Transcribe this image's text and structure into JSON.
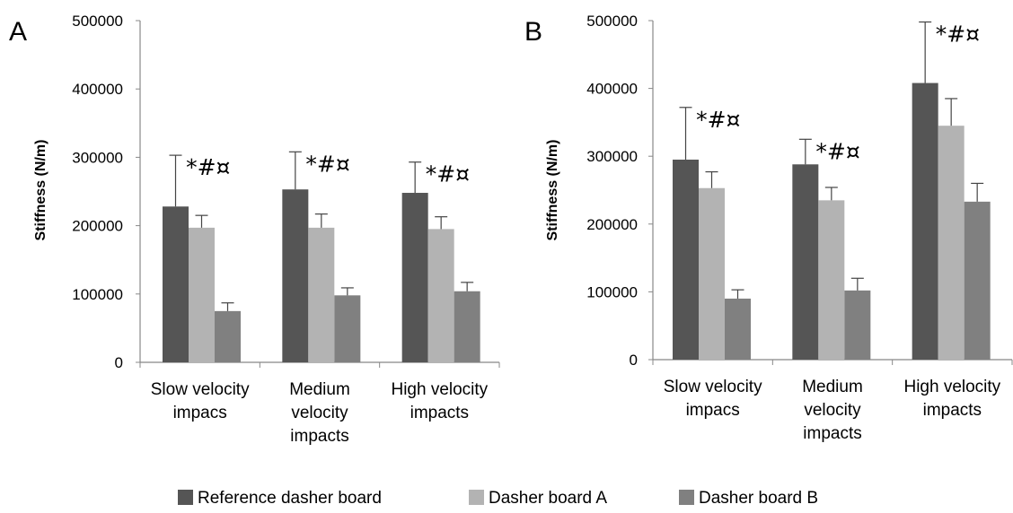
{
  "figure": {
    "legend": [
      {
        "label": "Reference dasher board",
        "color": "#555555"
      },
      {
        "label": "Dasher board A",
        "color": "#b3b3b3"
      },
      {
        "label": "Dasher board B",
        "color": "#808080"
      }
    ]
  },
  "chart_data": [
    {
      "type": "bar",
      "panel_label": "A",
      "ylabel": "Stiffness (N/m)",
      "ylim": [
        0,
        500000
      ],
      "yticks": [
        "0",
        "100000",
        "200000",
        "300000",
        "400000",
        "500000"
      ],
      "categories": [
        "Slow velocity impacs",
        "Medium velocity impacts",
        "High velocity impacts"
      ],
      "category_lines": [
        [
          "Slow velocity",
          "impacs"
        ],
        [
          "Medium",
          "velocity",
          "impacts"
        ],
        [
          "High velocity",
          "impacts"
        ]
      ],
      "series": [
        {
          "name": "Reference dasher board",
          "values": [
            228000,
            253000,
            248000
          ],
          "errors": [
            75000,
            55000,
            45000
          ]
        },
        {
          "name": "Dasher board A",
          "values": [
            197000,
            197000,
            195000
          ],
          "errors": [
            18000,
            20000,
            18000
          ]
        },
        {
          "name": "Dasher board B",
          "values": [
            75000,
            98000,
            104000
          ],
          "errors": [
            12000,
            11000,
            13000
          ]
        }
      ],
      "annotations": [
        "*#¤",
        "*#¤",
        "*#¤"
      ],
      "grid": false,
      "legend_position": "bottom"
    },
    {
      "type": "bar",
      "panel_label": "B",
      "ylabel": "Stiffness (N/m)",
      "ylim": [
        0,
        500000
      ],
      "yticks": [
        "0",
        "100000",
        "200000",
        "300000",
        "400000",
        "500000"
      ],
      "categories": [
        "Slow velocity impacs",
        "Medium velocity impacts",
        "High velocity impacts"
      ],
      "category_lines": [
        [
          "Slow velocity",
          "impacs"
        ],
        [
          "Medium",
          "velocity",
          "impacts"
        ],
        [
          "High velocity",
          "impacts"
        ]
      ],
      "series": [
        {
          "name": "Reference dasher board",
          "values": [
            295000,
            288000,
            408000
          ],
          "errors": [
            77000,
            37000,
            90000
          ]
        },
        {
          "name": "Dasher board A",
          "values": [
            253000,
            235000,
            345000
          ],
          "errors": [
            24000,
            19000,
            40000
          ]
        },
        {
          "name": "Dasher board B",
          "values": [
            90000,
            102000,
            233000
          ],
          "errors": [
            13000,
            18000,
            27000
          ]
        }
      ],
      "annotations": [
        "*#¤",
        "*#¤",
        "*#¤"
      ],
      "grid": false,
      "legend_position": "bottom"
    }
  ]
}
